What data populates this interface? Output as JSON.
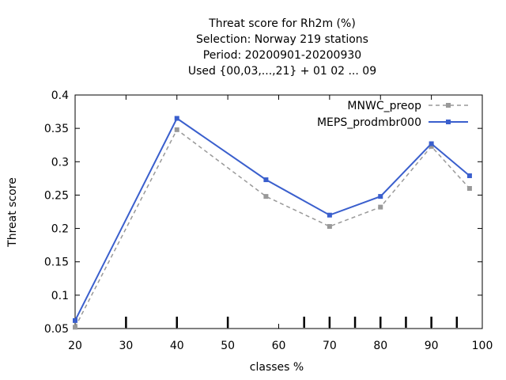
{
  "chart_data": {
    "type": "line",
    "title_lines": [
      "Threat score  for Rh2m (%)",
      "Selection: Norway    219 stations",
      "Period: 20200901-20200930",
      "Used {00,03,...,21} + 01 02 ... 09"
    ],
    "xlabel": "classes %",
    "ylabel": "Threat score",
    "xlim": [
      20,
      100
    ],
    "ylim": [
      0.05,
      0.4
    ],
    "xticks": [
      20,
      30,
      40,
      50,
      60,
      70,
      80,
      90,
      100
    ],
    "yticks": [
      0.05,
      0.1,
      0.15,
      0.2,
      0.25,
      0.3,
      0.35,
      0.4
    ],
    "xtick_labels": [
      "20",
      "30",
      "40",
      "50",
      "60",
      "70",
      "80",
      "90",
      "100"
    ],
    "ytick_labels": [
      "0.05",
      "0.1",
      "0.15",
      "0.2",
      "0.25",
      "0.3",
      "0.35",
      "0.4"
    ],
    "class_markers": [
      30,
      40,
      50,
      65,
      70,
      75,
      80,
      85,
      90,
      95
    ],
    "grid": false,
    "legend_position": "top-right",
    "series": [
      {
        "name": "MNWC_preop",
        "color": "#999999",
        "style": "dashed",
        "x": [
          20,
          40,
          57.5,
          70,
          80,
          90,
          97.5
        ],
        "y": [
          0.052,
          0.348,
          0.248,
          0.203,
          0.232,
          0.323,
          0.26
        ]
      },
      {
        "name": "MEPS_prodmbr000",
        "color": "#3a5fcd",
        "style": "solid",
        "x": [
          20,
          40,
          57.5,
          70,
          80,
          90,
          97.5
        ],
        "y": [
          0.062,
          0.365,
          0.273,
          0.22,
          0.248,
          0.327,
          0.279
        ]
      }
    ]
  }
}
